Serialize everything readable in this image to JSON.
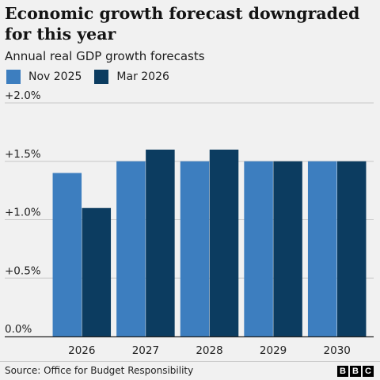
{
  "title": "Economic growth forecast downgraded for this year",
  "subtitle": "Annual real GDP growth forecasts",
  "source": "Source: Office for Budget Responsibility",
  "logo": [
    "B",
    "B",
    "C"
  ],
  "colors": {
    "series1": "#3d7ebf",
    "series2": "#0c3c60",
    "gridline": "#c8c8c8",
    "axis": "#222222"
  },
  "chart_data": {
    "type": "bar",
    "categories": [
      "2026",
      "2027",
      "2028",
      "2029",
      "2030"
    ],
    "series": [
      {
        "name": "Nov 2025",
        "values": [
          1.4,
          1.5,
          1.5,
          1.5,
          1.5
        ]
      },
      {
        "name": "Mar 2026",
        "values": [
          1.1,
          1.6,
          1.6,
          1.5,
          1.5
        ]
      }
    ],
    "y_ticks": [
      {
        "value": 0,
        "label": "0.0%"
      },
      {
        "value": 0.5,
        "label": "+0.5%"
      },
      {
        "value": 1.0,
        "label": "+1.0%"
      },
      {
        "value": 1.5,
        "label": "+1.5%"
      },
      {
        "value": 2.0,
        "label": "+2.0%"
      }
    ],
    "ylim": [
      0,
      2.0
    ],
    "grid": true,
    "legend_position": "top-left"
  }
}
